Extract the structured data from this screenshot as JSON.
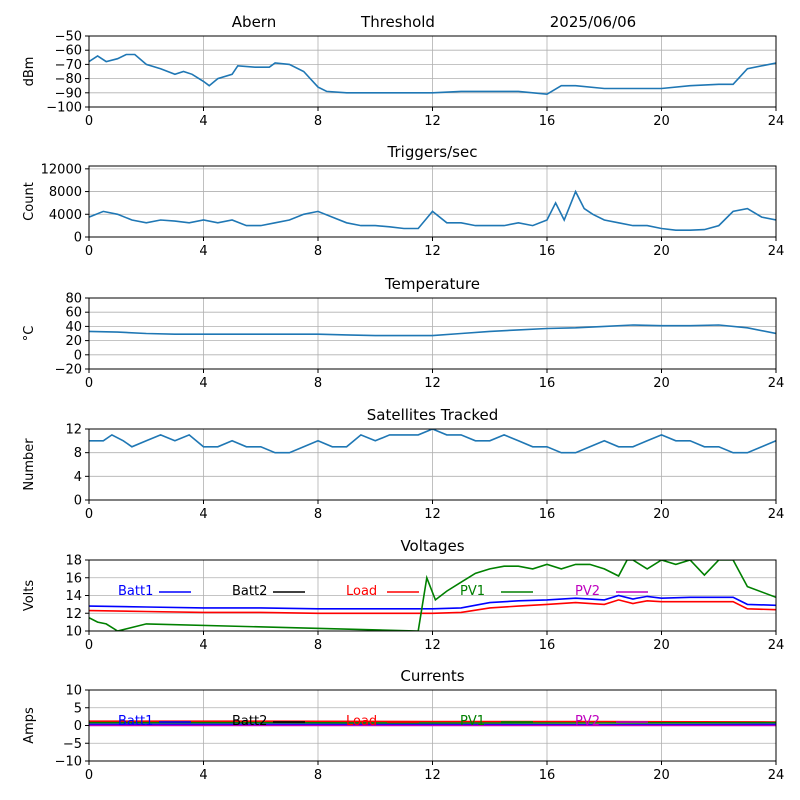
{
  "header": {
    "left": "Abern",
    "center": "Threshold",
    "right": "2025/06/06"
  },
  "chart_data": [
    {
      "type": "line",
      "title": "",
      "ylabel": "dBm",
      "xlim": [
        0,
        24
      ],
      "ylim": [
        -100,
        -50
      ],
      "xticks": [
        "0",
        "4",
        "8",
        "12",
        "16",
        "20",
        "24"
      ],
      "yticks": [
        "-50",
        "-60",
        "-70",
        "-80",
        "-90",
        "-100"
      ],
      "grid": true,
      "series": [
        {
          "color": "#1f77b4",
          "x": [
            0,
            0.3,
            0.6,
            1.0,
            1.3,
            1.6,
            2.0,
            2.5,
            3.0,
            3.3,
            3.6,
            4.0,
            4.2,
            4.5,
            5.0,
            5.2,
            5.8,
            6.3,
            6.5,
            7.0,
            7.5,
            8.0,
            8.3,
            9,
            10,
            11,
            12,
            13,
            14,
            15,
            16,
            16.5,
            17,
            18,
            19,
            20,
            21,
            22,
            22.5,
            23,
            24
          ],
          "y": [
            -68,
            -64,
            -68,
            -66,
            -63,
            -63,
            -70,
            -73,
            -77,
            -75,
            -77,
            -82,
            -85,
            -80,
            -77,
            -71,
            -72,
            -72,
            -69,
            -70,
            -75,
            -86,
            -89,
            -90,
            -90,
            -90,
            -90,
            -89,
            -89,
            -89,
            -91,
            -85,
            -85,
            -87,
            -87,
            -87,
            -85,
            -84,
            -84,
            -73,
            -69
          ]
        }
      ]
    },
    {
      "type": "line",
      "title": "Triggers/sec",
      "ylabel": "Count",
      "xlim": [
        0,
        24
      ],
      "ylim": [
        0,
        12500
      ],
      "xticks": [
        "0",
        "4",
        "8",
        "12",
        "16",
        "20",
        "24"
      ],
      "yticks": [
        "0",
        "4000",
        "8000",
        "12000"
      ],
      "grid": true,
      "series": [
        {
          "color": "#1f77b4",
          "x": [
            0,
            0.5,
            1,
            1.5,
            2,
            2.5,
            3,
            3.5,
            4,
            4.5,
            5,
            5.5,
            6,
            6.5,
            7,
            7.5,
            8,
            8.5,
            9,
            9.5,
            10,
            10.5,
            11,
            11.5,
            12,
            12.5,
            13,
            13.5,
            14,
            14.5,
            15,
            15.5,
            16,
            16.3,
            16.6,
            17,
            17.3,
            17.6,
            18,
            18.5,
            19,
            19.5,
            20,
            20.5,
            21,
            21.5,
            22,
            22.5,
            23,
            23.5,
            24
          ],
          "y": [
            3500,
            4500,
            4000,
            3000,
            2500,
            3000,
            2800,
            2500,
            3000,
            2500,
            3000,
            2000,
            2000,
            2500,
            3000,
            4000,
            4500,
            3500,
            2500,
            2000,
            2000,
            1800,
            1500,
            1500,
            4500,
            2500,
            2500,
            2000,
            2000,
            2000,
            2500,
            2000,
            3000,
            6000,
            3000,
            8000,
            5000,
            4000,
            3000,
            2500,
            2000,
            2000,
            1500,
            1200,
            1200,
            1300,
            2000,
            4500,
            5000,
            3500,
            3000
          ]
        }
      ]
    },
    {
      "type": "line",
      "title": "Temperature",
      "ylabel": "°C",
      "xlim": [
        0,
        24
      ],
      "ylim": [
        -20,
        80
      ],
      "xticks": [
        "0",
        "4",
        "8",
        "12",
        "16",
        "20",
        "24"
      ],
      "yticks": [
        "80",
        "60",
        "40",
        "20",
        "0",
        "-20"
      ],
      "grid": true,
      "series": [
        {
          "color": "#1f77b4",
          "x": [
            0,
            1,
            2,
            3,
            4,
            5,
            6,
            7,
            8,
            9,
            10,
            11,
            12,
            13,
            14,
            15,
            16,
            17,
            18,
            19,
            20,
            21,
            22,
            23,
            24
          ],
          "y": [
            33,
            32,
            30,
            29,
            29,
            29,
            29,
            29,
            29,
            28,
            27,
            27,
            27,
            30,
            33,
            35,
            37,
            38,
            40,
            42,
            41,
            41,
            42,
            38,
            30
          ]
        }
      ]
    },
    {
      "type": "line",
      "title": "Satellites Tracked",
      "ylabel": "Number",
      "xlim": [
        0,
        24
      ],
      "ylim": [
        0,
        12
      ],
      "xticks": [
        "0",
        "4",
        "8",
        "12",
        "16",
        "20",
        "24"
      ],
      "yticks": [
        "0",
        "4",
        "8",
        "12"
      ],
      "grid": true,
      "series": [
        {
          "color": "#1f77b4",
          "x": [
            0,
            0.5,
            0.8,
            1.2,
            1.5,
            2.0,
            2.5,
            3.0,
            3.5,
            4.0,
            4.5,
            5.0,
            5.5,
            6.0,
            6.5,
            7.0,
            7.5,
            8.0,
            8.5,
            9.0,
            9.5,
            10.0,
            10.5,
            11.0,
            11.5,
            12.0,
            12.5,
            13.0,
            13.5,
            14.0,
            14.5,
            15.0,
            15.5,
            16.0,
            16.5,
            17.0,
            17.5,
            18.0,
            18.5,
            19.0,
            19.5,
            20.0,
            20.5,
            21.0,
            21.5,
            22.0,
            22.5,
            23.0,
            23.5,
            24.0
          ],
          "y": [
            10,
            10,
            11,
            10,
            9,
            10,
            11,
            10,
            11,
            9,
            9,
            10,
            9,
            9,
            8,
            8,
            9,
            10,
            9,
            9,
            11,
            10,
            11,
            11,
            11,
            12,
            11,
            11,
            10,
            10,
            11,
            10,
            9,
            9,
            8,
            8,
            9,
            10,
            9,
            9,
            10,
            11,
            10,
            10,
            9,
            9,
            8,
            8,
            9,
            10
          ]
        }
      ]
    },
    {
      "type": "line",
      "title": "Voltages",
      "ylabel": "Volts",
      "xlim": [
        0,
        24
      ],
      "ylim": [
        10,
        18
      ],
      "xticks": [
        "0",
        "4",
        "8",
        "12",
        "16",
        "20",
        "24"
      ],
      "yticks": [
        "10",
        "12",
        "14",
        "16",
        "18"
      ],
      "grid": true,
      "legend": "top",
      "series": [
        {
          "name": "Batt1",
          "color": "#0000ff",
          "x": [
            0,
            2,
            4,
            6,
            8,
            10,
            12,
            13,
            14,
            15,
            16,
            17,
            18,
            18.5,
            19,
            19.5,
            20,
            21,
            22,
            22.5,
            23,
            24
          ],
          "y": [
            12.8,
            12.7,
            12.6,
            12.6,
            12.5,
            12.5,
            12.5,
            12.6,
            13.2,
            13.4,
            13.5,
            13.7,
            13.5,
            14.0,
            13.6,
            13.9,
            13.7,
            13.8,
            13.8,
            13.8,
            13.0,
            12.9
          ]
        },
        {
          "name": "Batt2",
          "color": "#000000",
          "x": [],
          "y": []
        },
        {
          "name": "Load",
          "color": "#ff0000",
          "x": [
            0,
            2,
            4,
            6,
            8,
            10,
            12,
            13,
            14,
            15,
            16,
            17,
            18,
            18.5,
            19,
            19.5,
            20,
            21,
            22,
            22.5,
            23,
            24
          ],
          "y": [
            12.3,
            12.2,
            12.1,
            12.1,
            12.0,
            12.0,
            12.0,
            12.1,
            12.6,
            12.8,
            13.0,
            13.2,
            13.0,
            13.5,
            13.1,
            13.4,
            13.3,
            13.3,
            13.3,
            13.3,
            12.5,
            12.4
          ]
        },
        {
          "name": "PV1",
          "color": "#008000",
          "x": [
            0,
            0.3,
            0.6,
            1.0,
            2.0,
            11.5,
            11.8,
            12.1,
            12.5,
            13.0,
            13.5,
            14.0,
            14.5,
            15.0,
            15.5,
            16.0,
            16.5,
            17.0,
            17.5,
            18.0,
            18.5,
            18.8,
            19.0,
            19.5,
            20.0,
            20.5,
            21.0,
            21.5,
            22.0,
            22.5,
            23.0,
            24.0
          ],
          "y": [
            11.5,
            11.0,
            10.8,
            10.0,
            10.8,
            10.0,
            16.0,
            13.5,
            14.5,
            15.5,
            16.5,
            17.0,
            17.3,
            17.3,
            17.0,
            17.5,
            17.0,
            17.5,
            17.5,
            17.0,
            16.2,
            18.0,
            18.0,
            17.0,
            18.0,
            17.5,
            18.0,
            16.3,
            18.0,
            18.0,
            15.0,
            13.8
          ]
        },
        {
          "name": "PV2",
          "color": "#bf00bf",
          "x": [],
          "y": []
        }
      ]
    },
    {
      "type": "line",
      "title": "Currents",
      "ylabel": "Amps",
      "xlim": [
        0,
        24
      ],
      "ylim": [
        -10,
        10
      ],
      "xticks": [
        "0",
        "4",
        "8",
        "12",
        "16",
        "20",
        "24"
      ],
      "yticks": [
        "10",
        "5",
        "0",
        "-5",
        "-10"
      ],
      "grid": true,
      "legend": "top",
      "series": [
        {
          "name": "Batt1",
          "color": "#0000ff",
          "x": [
            0,
            6,
            12,
            18,
            24
          ],
          "y": [
            0.3,
            0.3,
            0.3,
            0.2,
            0.3
          ]
        },
        {
          "name": "Batt2",
          "color": "#000000",
          "x": [],
          "y": []
        },
        {
          "name": "Load",
          "color": "#ff0000",
          "x": [
            0,
            6,
            12,
            18,
            24
          ],
          "y": [
            1.2,
            1.2,
            1.1,
            1.1,
            1.0
          ]
        },
        {
          "name": "PV1",
          "color": "#008000",
          "x": [
            0,
            6,
            12,
            18,
            24
          ],
          "y": [
            0.8,
            0.8,
            0.7,
            0.7,
            0.8
          ]
        },
        {
          "name": "PV2",
          "color": "#bf00bf",
          "x": [
            0,
            6,
            12,
            18,
            24
          ],
          "y": [
            0.0,
            0.0,
            0.0,
            0.0,
            0.0
          ]
        }
      ]
    }
  ]
}
